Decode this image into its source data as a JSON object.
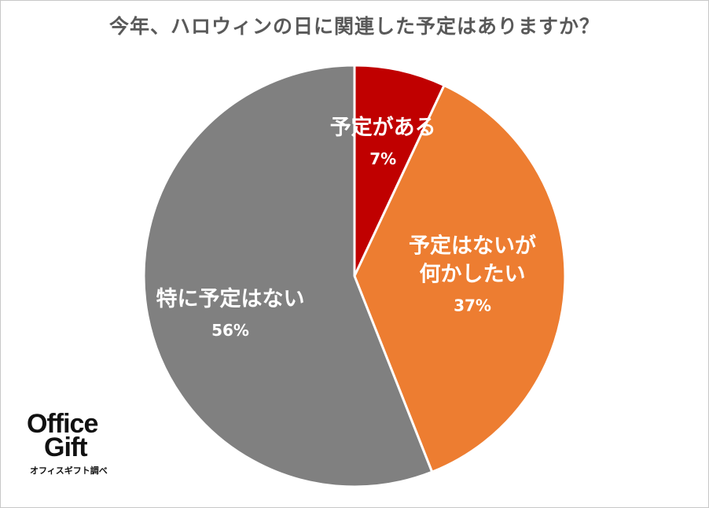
{
  "chart_data": {
    "type": "pie",
    "title": "今年、ハロウィンの日に関連した予定はありますか？",
    "slices": [
      {
        "label": "予定がある",
        "value": 7,
        "value_label": "7%",
        "color": "#c00000"
      },
      {
        "label": "予定はないが\n何かしたい",
        "value": 37,
        "value_label": "37%",
        "color": "#ed7d31"
      },
      {
        "label": "特に予定はない",
        "value": 56,
        "value_label": "56%",
        "color": "#808080"
      }
    ],
    "legend": "none",
    "start_angle": "12 o'clock",
    "direction": "clockwise"
  },
  "logo": {
    "line1": "Office",
    "line2": "Gift",
    "subtitle": "オフィスギフト調べ"
  }
}
